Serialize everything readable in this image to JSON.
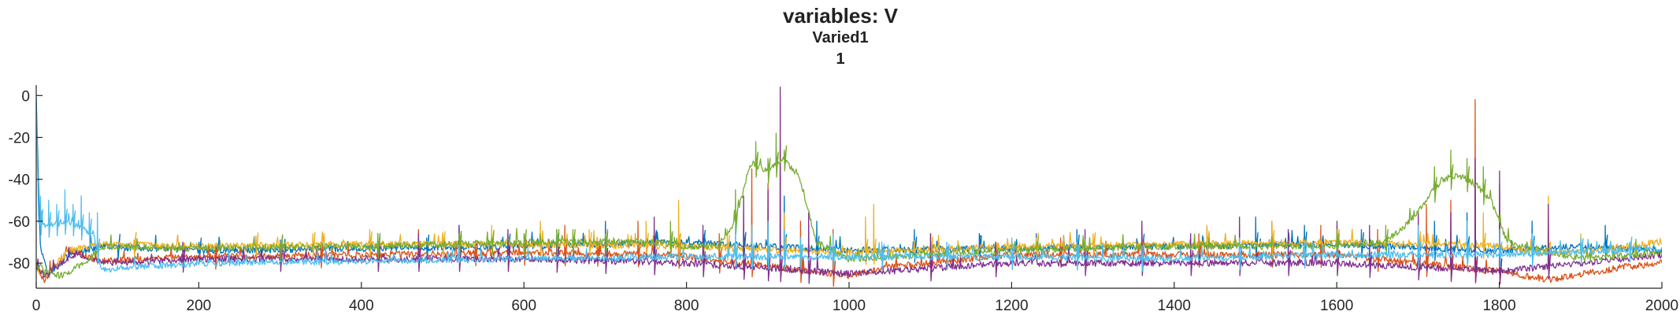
{
  "chart_data": {
    "type": "line",
    "title": "variables: V",
    "subtitle_lines": [
      "Varied1",
      "1"
    ],
    "xlabel": "",
    "ylabel": "",
    "xlim": [
      0,
      2000
    ],
    "ylim": [
      -92,
      5
    ],
    "xticks": [
      0,
      200,
      400,
      600,
      800,
      1000,
      1200,
      1400,
      1600,
      1800,
      2000
    ],
    "yticks": [
      0,
      -20,
      -40,
      -60,
      -80
    ],
    "grid": false,
    "legend": "none",
    "series": [
      {
        "color": "#0072BD",
        "baseline": -73,
        "base_x": [
          0,
          5,
          15,
          40,
          80,
          200,
          400,
          600,
          800,
          1000,
          1200,
          1400,
          1600,
          1800,
          1900,
          2000
        ],
        "base_y": [
          0,
          -72,
          -85,
          -76,
          -72,
          -74,
          -73,
          -72,
          -70,
          -74,
          -73,
          -72,
          -71,
          -74,
          -72,
          -74
        ],
        "spikes_x": [
          100,
          200,
          300,
          420,
          480,
          520,
          580,
          640,
          700,
          760,
          820,
          870,
          920,
          960,
          1080,
          1160,
          1230,
          1280,
          1360,
          1440,
          1500,
          1560,
          1630,
          1720,
          1760,
          1840,
          1930
        ],
        "spikes_y": [
          -72,
          -70,
          -69,
          -66,
          -68,
          -62,
          -66,
          -64,
          -60,
          -65,
          -68,
          -75,
          -48,
          -60,
          -64,
          -66,
          -66,
          -64,
          -68,
          -63,
          -58,
          -62,
          -64,
          -60,
          -56,
          -60,
          -62
        ]
      },
      {
        "color": "#D95319",
        "baseline": -77,
        "base_x": [
          0,
          10,
          40,
          80,
          200,
          400,
          600,
          780,
          1000,
          1050,
          1200,
          1400,
          1600,
          1800,
          1860,
          1950,
          2000
        ],
        "base_y": [
          -82,
          -88,
          -74,
          -79,
          -77,
          -76,
          -75,
          -76,
          -86,
          -82,
          -76,
          -76,
          -76,
          -84,
          -88,
          -82,
          -80
        ],
        "spikes_x": [
          220,
          350,
          420,
          470,
          540,
          600,
          650,
          690,
          740,
          790,
          840,
          880,
          900,
          940,
          980,
          1100,
          1180,
          1260,
          1360,
          1430,
          1520,
          1580,
          1650,
          1710,
          1740,
          1770,
          1800
        ],
        "spikes_y": [
          -72,
          -70,
          -68,
          -64,
          -70,
          -66,
          -62,
          -68,
          -60,
          -70,
          -66,
          -35,
          -42,
          -60,
          -64,
          -66,
          -70,
          -68,
          -62,
          -66,
          -60,
          -62,
          -64,
          -52,
          -50,
          -2,
          -42
        ]
      },
      {
        "color": "#EDB120",
        "baseline": -71,
        "base_x": [
          0,
          10,
          40,
          80,
          200,
          400,
          600,
          800,
          1000,
          1200,
          1400,
          1600,
          1800,
          1860,
          2000
        ],
        "base_y": [
          -82,
          -86,
          -74,
          -71,
          -72,
          -71,
          -71,
          -72,
          -75,
          -72,
          -71,
          -70,
          -72,
          -76,
          -70
        ],
        "spikes_x": [
          120,
          270,
          340,
          410,
          500,
          560,
          620,
          680,
          750,
          790,
          850,
          920,
          1020,
          1030,
          1100,
          1230,
          1300,
          1440,
          1520,
          1600,
          1700,
          1780,
          1860,
          1900
        ],
        "spikes_y": [
          -69,
          -67,
          -66,
          -64,
          -66,
          -62,
          -60,
          -64,
          -60,
          -50,
          -64,
          -56,
          -58,
          -52,
          -66,
          -68,
          -66,
          -62,
          -60,
          -62,
          -60,
          -56,
          -48,
          -66
        ]
      },
      {
        "color": "#7E2F8E",
        "baseline": -79,
        "base_x": [
          0,
          10,
          50,
          80,
          200,
          400,
          600,
          800,
          1000,
          1200,
          1400,
          1600,
          1800,
          2000
        ],
        "base_y": [
          -82,
          -86,
          -75,
          -80,
          -78,
          -78,
          -78,
          -80,
          -85,
          -80,
          -80,
          -80,
          -84,
          -76
        ],
        "spikes_x": [
          180,
          300,
          420,
          470,
          520,
          580,
          640,
          700,
          760,
          820,
          870,
          900,
          915,
          950,
          1100,
          1180,
          1290,
          1360,
          1420,
          1480,
          1540,
          1600,
          1640,
          1700,
          1740,
          1770,
          1800,
          1860
        ],
        "spikes_y": [
          -70,
          -70,
          -68,
          -66,
          -62,
          -64,
          -66,
          -64,
          -58,
          -62,
          -48,
          -45,
          4,
          -56,
          -66,
          -70,
          -64,
          -60,
          -66,
          -58,
          -64,
          -60,
          -62,
          -56,
          -56,
          -30,
          -36,
          -52
        ]
      },
      {
        "color": "#77AC30",
        "baseline": -72,
        "base_x": [
          0,
          10,
          30,
          60,
          80,
          200,
          400,
          600,
          760,
          800,
          840,
          860,
          880,
          900,
          920,
          940,
          960,
          1000,
          1200,
          1400,
          1600,
          1660,
          1690,
          1710,
          1730,
          1750,
          1770,
          1790,
          1810,
          1900,
          2000
        ],
        "base_y": [
          -80,
          -84,
          -86,
          -80,
          -72,
          -73,
          -72,
          -70,
          -70,
          -72,
          -72,
          -60,
          -32,
          -36,
          -30,
          -40,
          -70,
          -78,
          -74,
          -72,
          -72,
          -70,
          -60,
          -50,
          -40,
          -38,
          -42,
          -50,
          -70,
          -78,
          -75
        ],
        "spikes_x": [
          300,
          420,
          520,
          560,
          600,
          640,
          660,
          700,
          780,
          860,
          885,
          900,
          910,
          920,
          1600,
          1660,
          1720,
          1740,
          1760,
          1780
        ],
        "spikes_y": [
          -70,
          -66,
          -66,
          -68,
          -66,
          -64,
          -64,
          -66,
          -60,
          -45,
          -22,
          -30,
          -18,
          -26,
          -64,
          -62,
          -34,
          -26,
          -30,
          -34
        ]
      },
      {
        "color": "#4DBEEE",
        "baseline": -77,
        "base_x": [
          0,
          3,
          10,
          40,
          70,
          80,
          200,
          400,
          600,
          800,
          1000,
          1200,
          1400,
          1600,
          1800,
          2000
        ],
        "base_y": [
          -5,
          -60,
          -62,
          -60,
          -66,
          -83,
          -80,
          -79,
          -78,
          -77,
          -77,
          -77,
          -78,
          -76,
          -76,
          -73
        ],
        "spikes_x": [
          5,
          15,
          25,
          35,
          45,
          55,
          65,
          75,
          860,
          880,
          900,
          920,
          940,
          980,
          1040,
          1120,
          1200,
          1280,
          1360,
          1480,
          1560,
          1700,
          1760,
          1800,
          1840,
          1900,
          1960
        ],
        "spikes_y": [
          -48,
          -50,
          -52,
          -45,
          -52,
          -48,
          -56,
          -56,
          -60,
          -62,
          -60,
          -64,
          -68,
          -66,
          -70,
          -70,
          -68,
          -70,
          -72,
          -68,
          -70,
          -62,
          -60,
          -64,
          -66,
          -68,
          -70
        ]
      }
    ]
  }
}
